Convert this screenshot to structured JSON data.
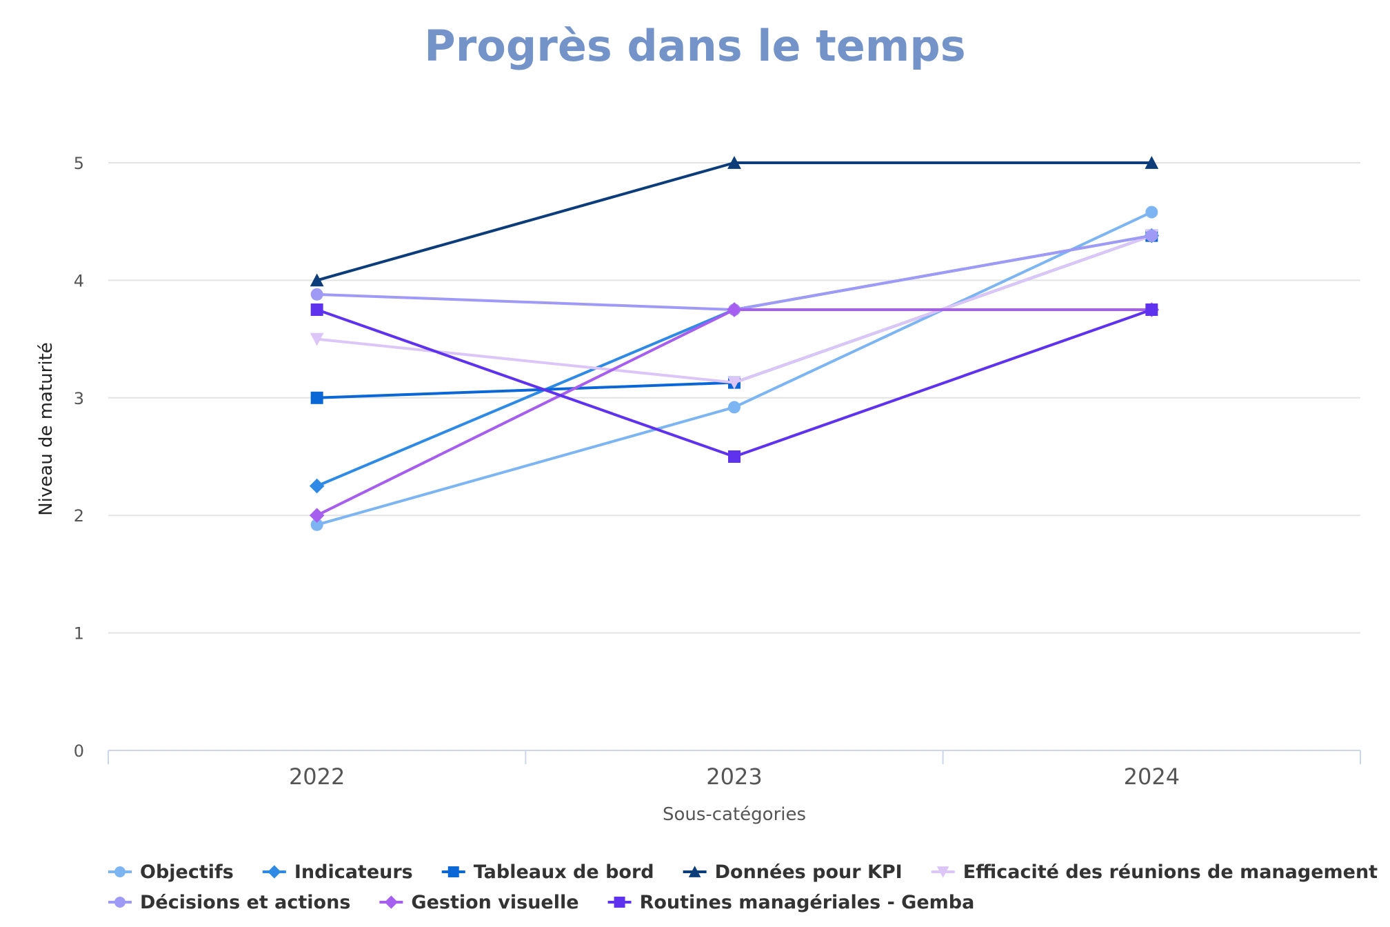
{
  "chart_data": {
    "type": "line",
    "title": "Progrès dans le temps",
    "xlabel": "Sous-catégories",
    "ylabel": "Niveau de maturité",
    "categories": [
      "2022",
      "2023",
      "2024"
    ],
    "ylim": [
      0,
      5
    ],
    "yticks": [
      "0",
      "1",
      "2",
      "3",
      "4",
      "5"
    ],
    "grid": true,
    "legend_position": "bottom",
    "series": [
      {
        "name": "Objectifs",
        "color": "#7cb5f2",
        "marker": "circle",
        "values": [
          1.92,
          2.92,
          4.58
        ]
      },
      {
        "name": "Indicateurs",
        "color": "#2f8ae6",
        "marker": "diamond",
        "values": [
          2.25,
          3.75,
          4.38
        ]
      },
      {
        "name": "Tableaux de bord",
        "color": "#0b66d6",
        "marker": "square",
        "values": [
          3.0,
          3.13,
          4.38
        ]
      },
      {
        "name": "Données pour KPI",
        "color": "#0c3d7a",
        "marker": "triangle",
        "values": [
          4.0,
          5.0,
          5.0
        ]
      },
      {
        "name": "Efficacité des réunions de management",
        "color": "#dcc6f7",
        "marker": "triangle-down",
        "values": [
          3.5,
          3.13,
          4.38
        ]
      },
      {
        "name": "Décisions et actions",
        "color": "#9f9af5",
        "marker": "circle",
        "values": [
          3.88,
          3.75,
          4.38
        ]
      },
      {
        "name": "Gestion visuelle",
        "color": "#a65eee",
        "marker": "diamond",
        "values": [
          2.0,
          3.75,
          3.75
        ]
      },
      {
        "name": "Routines managériales - Gemba",
        "color": "#5f33ee",
        "marker": "square",
        "values": [
          3.75,
          2.5,
          3.75
        ]
      }
    ]
  }
}
